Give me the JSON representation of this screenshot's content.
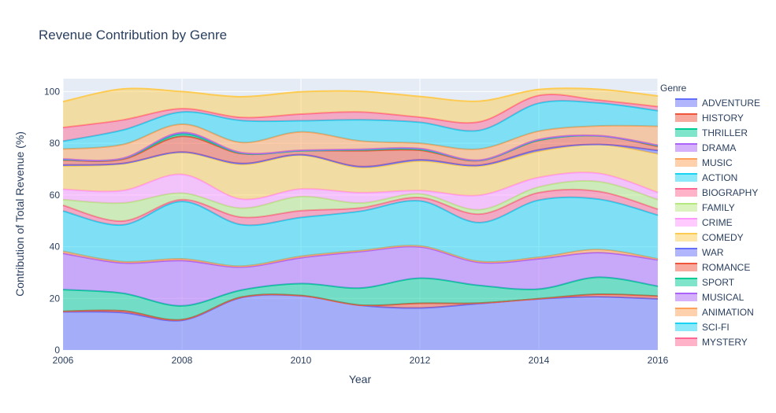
{
  "chart_data": {
    "type": "area",
    "stacked": true,
    "title": "Revenue Contribution by Genre",
    "xlabel": "Year",
    "ylabel": "Contribution of Total Revenue (%)",
    "xlim": [
      2006,
      2016
    ],
    "ylim": [
      0,
      105
    ],
    "x_ticks": [
      "2006",
      "2008",
      "2010",
      "2012",
      "2014",
      "2016"
    ],
    "y_ticks": [
      "0",
      "20",
      "40",
      "60",
      "80",
      "100"
    ],
    "grid": true,
    "legend_title": "Genre",
    "legend_position": "right",
    "x": [
      2006,
      2007,
      2008,
      2009,
      2010,
      2011,
      2012,
      2013,
      2014,
      2015,
      2016
    ],
    "series": [
      {
        "name": "ADVENTURE",
        "color": "#636efa",
        "values": [
          14.8,
          14.5,
          11.5,
          20.3,
          21.0,
          17.3,
          16.3,
          18.0,
          19.8,
          20.6,
          19.8
        ]
      },
      {
        "name": "HISTORY",
        "color": "#ef553b",
        "values": [
          0.2,
          0.7,
          0.3,
          0.2,
          0.1,
          0.1,
          1.8,
          0.2,
          0.1,
          1.0,
          1.1
        ]
      },
      {
        "name": "THRILLER",
        "color": "#00cc96",
        "values": [
          8.4,
          6.8,
          5.3,
          2.7,
          4.6,
          6.6,
          9.7,
          6.8,
          3.7,
          6.6,
          3.8
        ]
      },
      {
        "name": "DRAMA",
        "color": "#ab63fa",
        "values": [
          14.0,
          11.7,
          17.5,
          8.9,
          10.0,
          14.1,
          12.1,
          8.9,
          11.7,
          9.5,
          10.2
        ]
      },
      {
        "name": "MUSIC",
        "color": "#ffa15a",
        "values": [
          0.8,
          0.5,
          0.7,
          0.4,
          0.6,
          0.4,
          0.4,
          0.4,
          0.6,
          1.2,
          0.4
        ]
      },
      {
        "name": "ACTION",
        "color": "#19d3f3",
        "values": [
          15.6,
          14.2,
          22.2,
          16.0,
          15.0,
          15.2,
          17.4,
          15.0,
          22.1,
          19.5,
          16.9
        ]
      },
      {
        "name": "BIOGRAPHY",
        "color": "#ff6692",
        "values": [
          2.2,
          1.5,
          0.7,
          2.9,
          2.6,
          1.3,
          1.3,
          3.3,
          2.9,
          3.0,
          2.3
        ]
      },
      {
        "name": "FAMILY",
        "color": "#b6e880",
        "values": [
          2.2,
          7.0,
          2.5,
          3.5,
          5.5,
          1.9,
          1.4,
          1.7,
          2.2,
          3.8,
          3.7
        ]
      },
      {
        "name": "CRIME",
        "color": "#ff97ff",
        "values": [
          4.0,
          4.8,
          7.3,
          3.5,
          2.9,
          4.0,
          1.3,
          5.6,
          3.7,
          3.2,
          2.8
        ]
      },
      {
        "name": "COMEDY",
        "color": "#fecb52",
        "values": [
          9.0,
          10.3,
          8.4,
          13.4,
          13.1,
          9.7,
          11.4,
          11.3,
          10.1,
          11.1,
          14.9
        ]
      },
      {
        "name": "WAR",
        "color": "#636efa",
        "values": [
          0.4,
          0.2,
          0.2,
          0.4,
          0.2,
          0.4,
          0.5,
          0.3,
          0.6,
          0.1,
          1.3
        ]
      },
      {
        "name": "ROMANCE",
        "color": "#ef553b",
        "values": [
          1.9,
          1.6,
          6.1,
          3.8,
          1.5,
          6.1,
          3.7,
          1.8,
          3.6,
          3.3,
          1.6
        ]
      },
      {
        "name": "SPORT",
        "color": "#00cc96",
        "values": [
          0.2,
          0.3,
          0.9,
          0.2,
          0.0,
          0.4,
          0.4,
          0.1,
          0.1,
          0.0,
          0.3
        ]
      },
      {
        "name": "MUSICAL",
        "color": "#ab63fa",
        "values": [
          0.2,
          0.1,
          0.6,
          0.2,
          0.2,
          0.2,
          0.3,
          0.1,
          0.3,
          0.1,
          0.2
        ]
      },
      {
        "name": "ANIMATION",
        "color": "#ffa15a",
        "values": [
          3.9,
          5.3,
          3.2,
          3.9,
          7.1,
          3.2,
          2.0,
          4.3,
          3.2,
          3.7,
          7.3
        ]
      },
      {
        "name": "SCI-FI",
        "color": "#19d3f3",
        "values": [
          3.0,
          5.6,
          4.7,
          8.5,
          4.3,
          8.2,
          8.1,
          7.2,
          10.8,
          8.9,
          6.0
        ]
      },
      {
        "name": "MYSTERY",
        "color": "#ff6692",
        "values": [
          5.3,
          3.9,
          1.3,
          1.2,
          2.6,
          3.0,
          2.0,
          3.3,
          3.0,
          1.1,
          1.6
        ]
      }
    ],
    "extra_band": {
      "color": "#fecb52",
      "values": [
        10.0,
        12.0,
        6.6,
        8.0,
        8.6,
        8.0,
        8.0,
        8.0,
        2.3,
        4.2,
        4.1
      ]
    }
  }
}
